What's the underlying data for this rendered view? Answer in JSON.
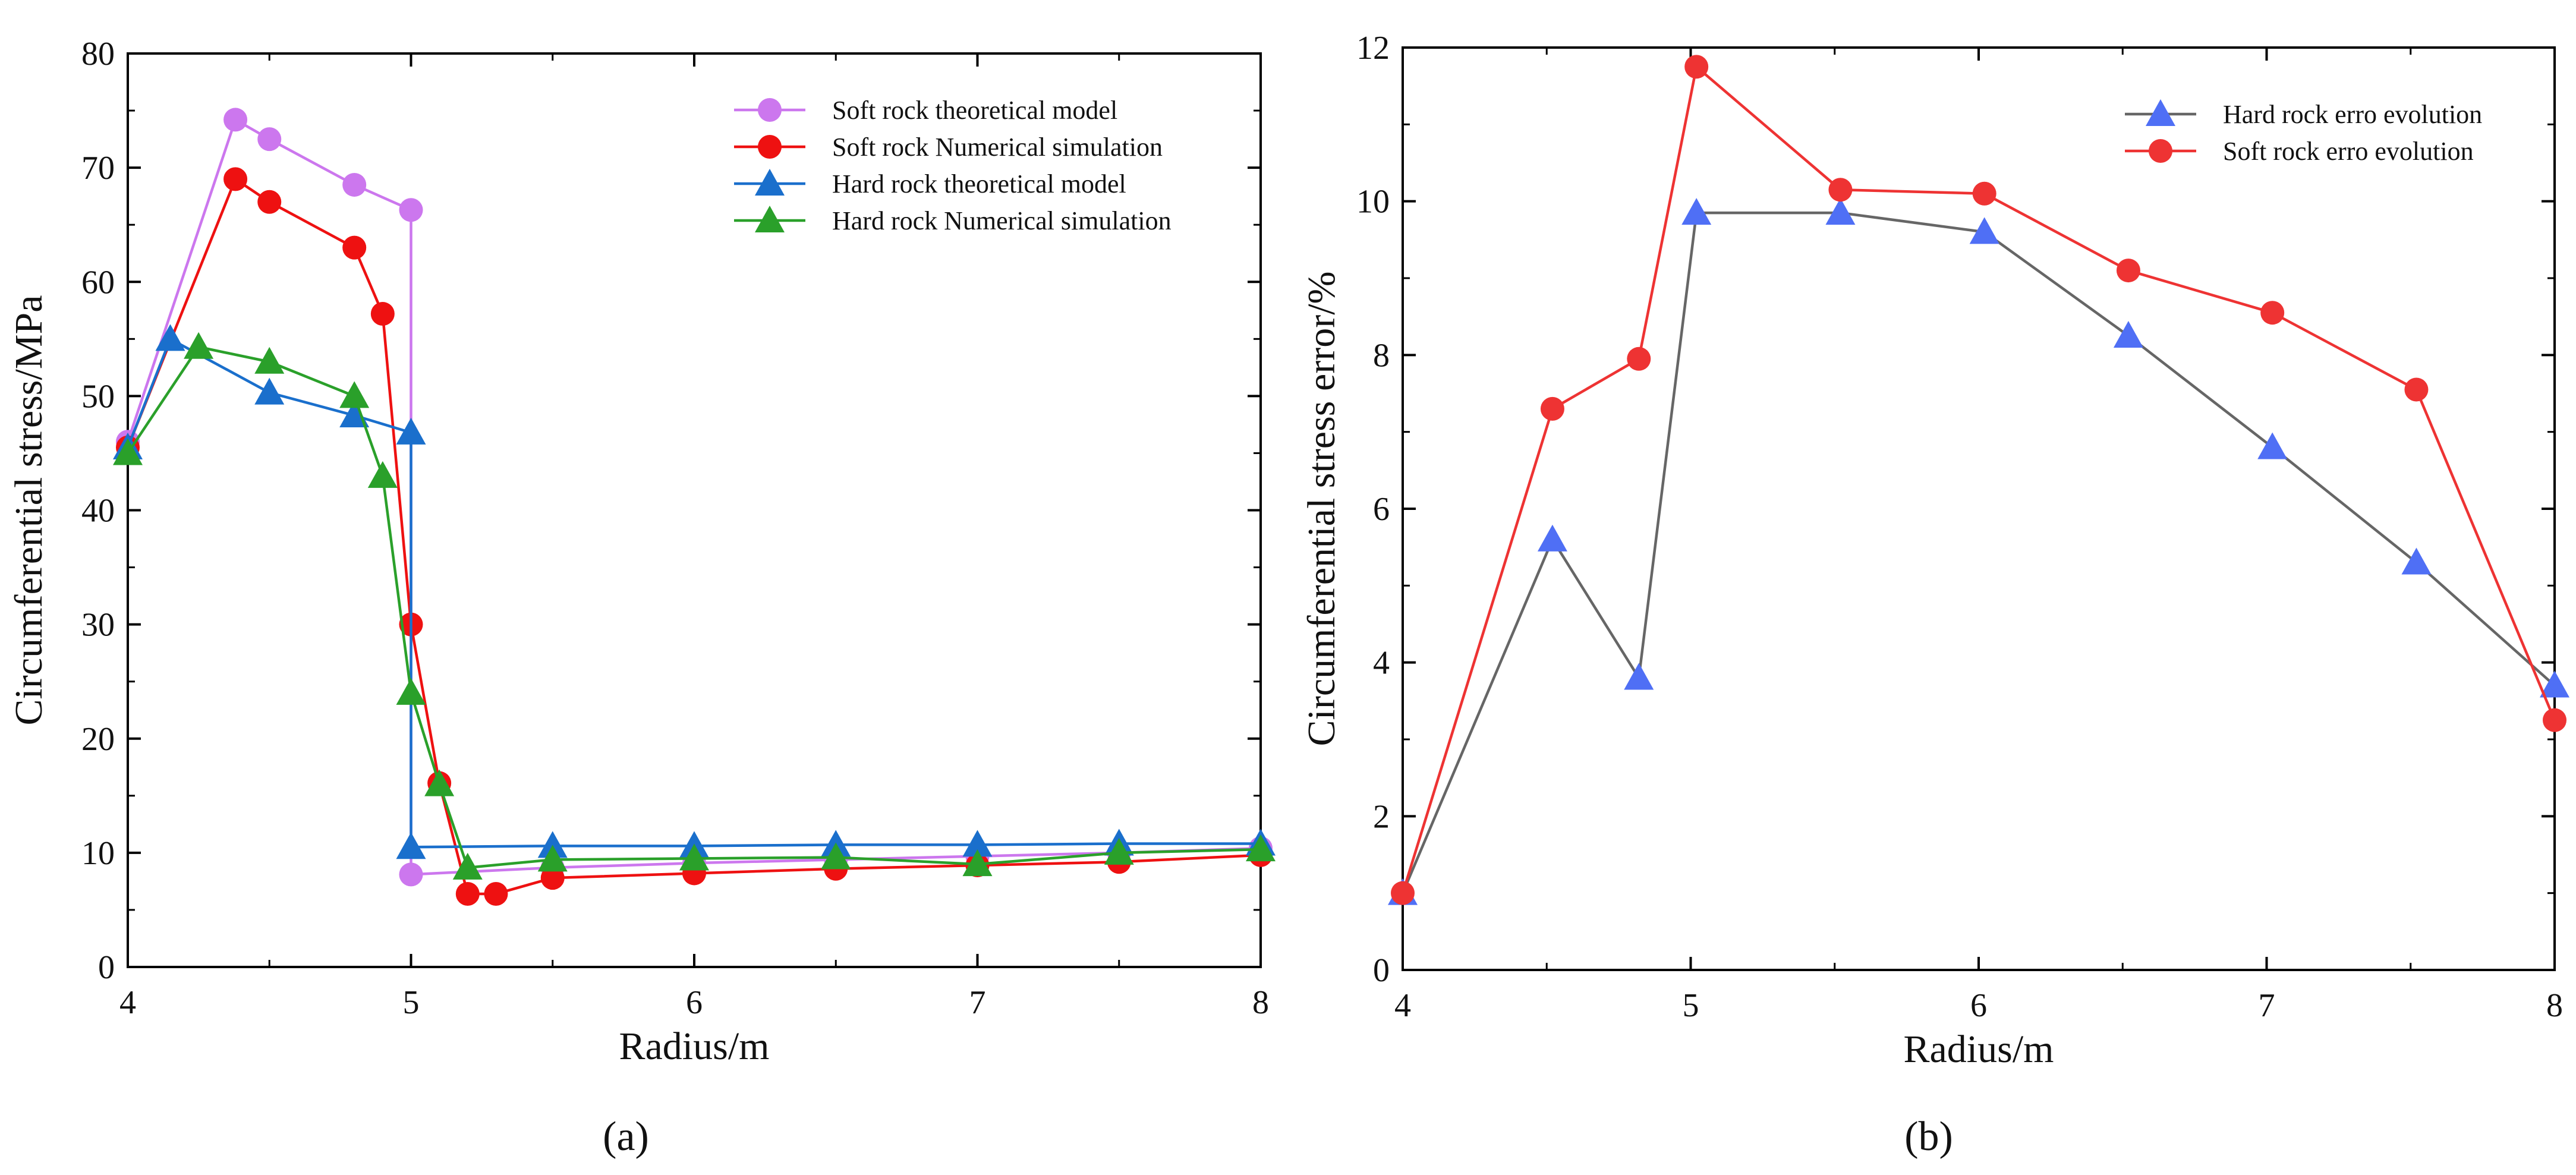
{
  "figure": {
    "panel_a_label": "(a)",
    "panel_b_label": "(b)"
  },
  "chart_data": [
    {
      "type": "line",
      "panel": "a",
      "title": "",
      "xlabel": "Radius/m",
      "ylabel": "Circumferential stress/MPa",
      "xlim": [
        4,
        8
      ],
      "ylim": [
        0,
        80
      ],
      "xticks": [
        4,
        5,
        6,
        7,
        8
      ],
      "yticks": [
        0,
        10,
        20,
        30,
        40,
        50,
        60,
        70,
        80
      ],
      "grid": false,
      "legend_position": "top-right",
      "series": [
        {
          "name": "Soft rock theoretical model",
          "color": "#cc77ee",
          "marker": "circle",
          "x": [
            4.0,
            4.38,
            4.5,
            4.8,
            5.0,
            5.0,
            5.5,
            6.0,
            6.5,
            7.0,
            7.5,
            8.0
          ],
          "y": [
            46,
            74.2,
            72.5,
            68.5,
            66.3,
            8.1,
            8.7,
            9.1,
            9.4,
            9.7,
            10.0,
            10.4
          ]
        },
        {
          "name": "Soft rock Numerical simulation",
          "color": "#ee1111",
          "marker": "circle",
          "x": [
            4.0,
            4.38,
            4.5,
            4.8,
            4.9,
            5.0,
            5.1,
            5.2,
            5.3,
            5.5,
            6.0,
            6.5,
            7.0,
            7.5,
            8.0
          ],
          "y": [
            45.5,
            69.0,
            67.0,
            63.0,
            57.2,
            30.0,
            16.1,
            6.4,
            6.4,
            7.8,
            8.2,
            8.6,
            8.9,
            9.2,
            9.8
          ]
        },
        {
          "name": " Hard rock theoretical model",
          "color": "#1a6fcc",
          "marker": "triangle",
          "x": [
            4.0,
            4.15,
            4.5,
            4.8,
            5.0,
            5.0,
            5.5,
            6.0,
            6.5,
            7.0,
            7.5,
            8.0
          ],
          "y": [
            45.5,
            55.0,
            50.3,
            48.3,
            46.8,
            10.5,
            10.6,
            10.6,
            10.7,
            10.7,
            10.8,
            10.8
          ]
        },
        {
          "name": "Hard rock Numerical simulation",
          "color": "#2aa02a",
          "marker": "triangle",
          "x": [
            4.0,
            4.25,
            4.5,
            4.8,
            4.9,
            5.0,
            5.1,
            5.2,
            5.5,
            6.0,
            6.5,
            7.0,
            7.5,
            8.0
          ],
          "y": [
            45.0,
            54.3,
            53.0,
            50.0,
            43.0,
            24.0,
            16.0,
            8.7,
            9.4,
            9.5,
            9.6,
            9.0,
            10.0,
            10.3
          ]
        }
      ]
    },
    {
      "type": "line",
      "panel": "b",
      "title": "",
      "xlabel": "Radius/m",
      "ylabel": "Circumferential stress error/%",
      "xlim": [
        4,
        8
      ],
      "ylim": [
        0,
        12
      ],
      "xticks": [
        4,
        5,
        6,
        7,
        8
      ],
      "yticks": [
        0,
        2,
        4,
        6,
        8,
        10,
        12
      ],
      "grid": false,
      "legend_position": "top-right",
      "series": [
        {
          "name": "Hard rock erro evolution",
          "color": "#666666",
          "marker_color": "#4f6ff5",
          "marker": "triangle",
          "x": [
            4.0,
            4.52,
            4.82,
            5.02,
            5.52,
            6.02,
            6.52,
            7.02,
            7.52,
            8.0
          ],
          "y": [
            1.0,
            5.6,
            3.8,
            9.85,
            9.85,
            9.6,
            8.25,
            6.8,
            5.3,
            3.7
          ]
        },
        {
          "name": "Soft rock erro evolution",
          "color": "#ee3333",
          "marker": "circle",
          "x": [
            4.0,
            4.52,
            4.82,
            5.02,
            5.52,
            6.02,
            6.52,
            7.02,
            7.52,
            8.0
          ],
          "y": [
            1.0,
            7.3,
            7.95,
            11.75,
            10.15,
            10.1,
            9.1,
            8.55,
            7.55,
            3.25
          ]
        }
      ]
    }
  ]
}
